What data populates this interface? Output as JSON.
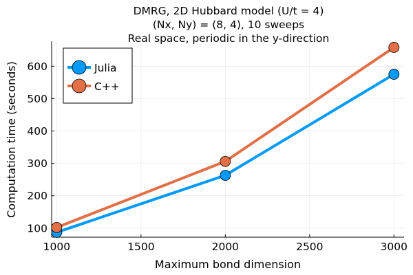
{
  "chart_data": {
    "type": "line",
    "title_lines": [
      "DMRG, 2D Hubbard model (U/t = 4)",
      "(Nx, Ny) = (8, 4), 10 sweeps",
      "Real space, periodic in the y-direction"
    ],
    "xlabel": "Maximum bond dimension",
    "ylabel": "Computation time (seconds)",
    "x": [
      1000,
      2000,
      3000
    ],
    "xlim": [
      970,
      3060
    ],
    "ylim": [
      72,
      677
    ],
    "xticks": [
      1000,
      1500,
      2000,
      2500,
      3000
    ],
    "yticks": [
      100,
      200,
      300,
      400,
      500,
      600
    ],
    "grid": true,
    "legend_position": "top-left",
    "series": [
      {
        "name": "Julia",
        "values": [
          87,
          263,
          575
        ],
        "color": "#009AFA"
      },
      {
        "name": "C++",
        "values": [
          102,
          306,
          658
        ],
        "color": "#E26F46"
      }
    ]
  }
}
